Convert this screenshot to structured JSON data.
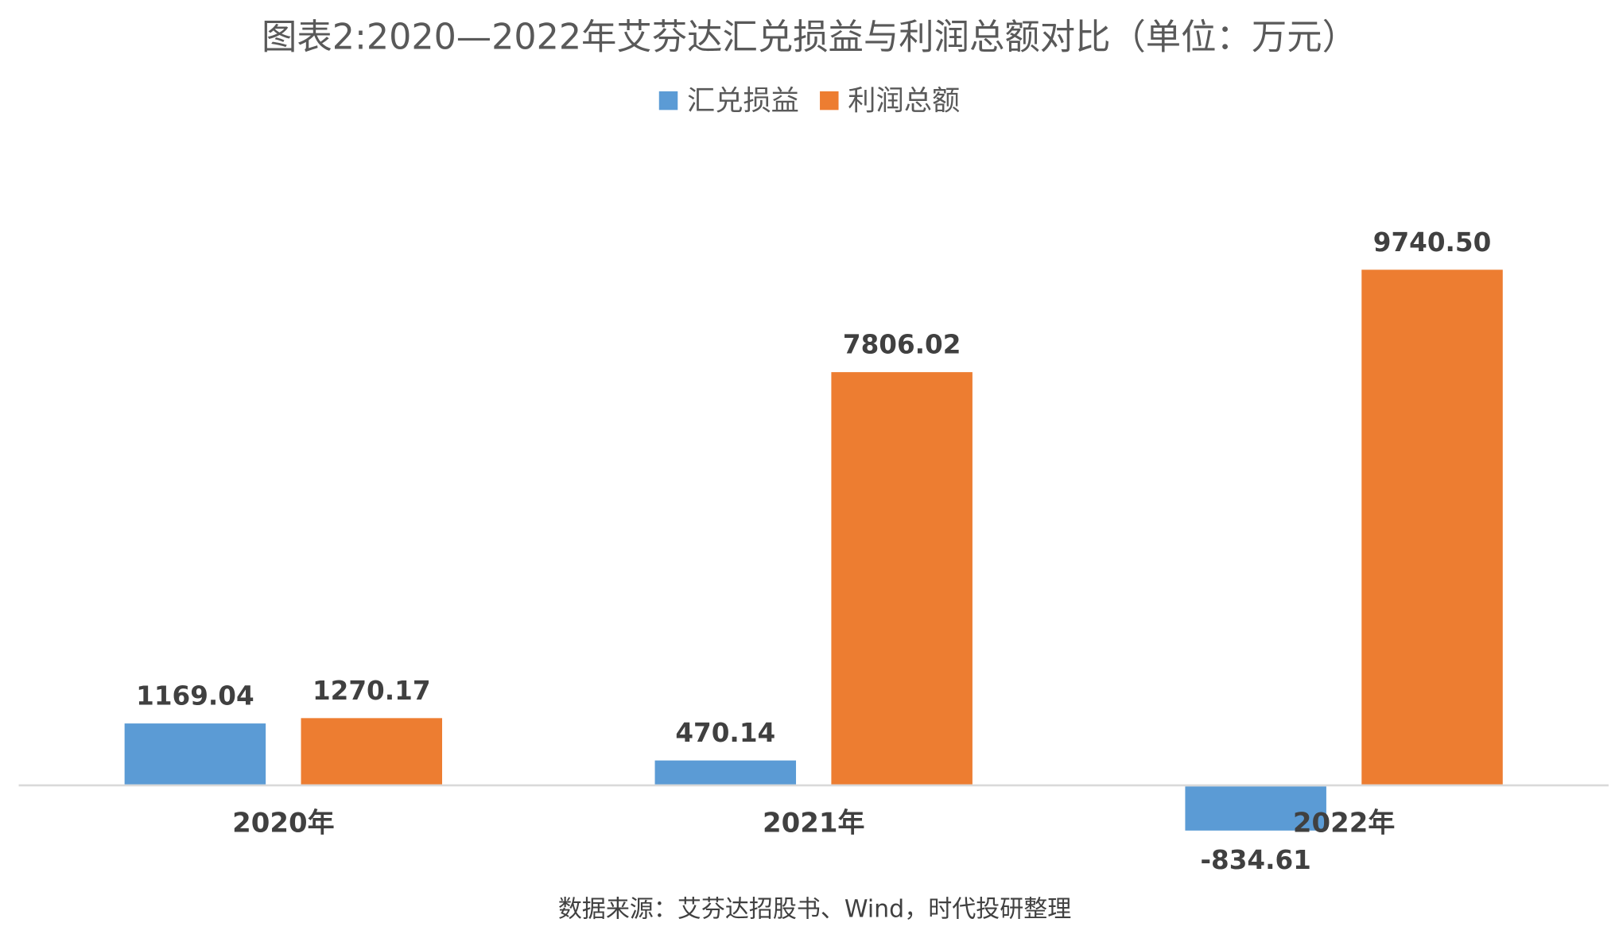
{
  "chart_data": {
    "type": "bar",
    "title": "图表2:2020—2022年艾芬达汇兑损益与利润总额对比（单位：万元）",
    "categories": [
      "2020年",
      "2021年",
      "2022年"
    ],
    "series": [
      {
        "name": "汇兑损益",
        "color": "#5B9BD5",
        "values": [
          1169.04,
          470.14,
          -834.61
        ],
        "labels": [
          "1169.04",
          "470.14",
          "-834.61"
        ]
      },
      {
        "name": "利润总额",
        "color": "#ED7D31",
        "values": [
          1270.17,
          7806.02,
          9740.5
        ],
        "labels": [
          "1270.17",
          "7806.02",
          "9740.50"
        ]
      }
    ],
    "xlabel": "",
    "ylabel": "",
    "ylim": [
      -834.61,
      9740.5
    ],
    "grid": false,
    "legend": "top-center",
    "source": "数据来源：艾芬达招股书、Wind，时代投研整理"
  }
}
